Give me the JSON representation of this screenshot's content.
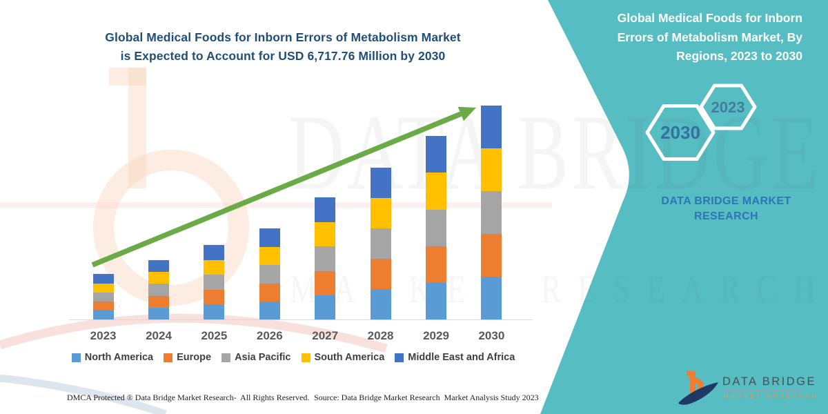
{
  "title": {
    "line1": "Global Medical Foods for Inborn Errors of Metabolism Market",
    "line2": "is Expected to Account for USD 6,717.76 Million by 2030"
  },
  "side_panel": {
    "title_lines": [
      "Global Medical Foods for Inborn",
      "Errors of Metabolism Market, By",
      "Regions, 2023 to 2030"
    ],
    "hexagons": [
      {
        "label": "2030"
      },
      {
        "label": "2023"
      }
    ],
    "brand_lines": [
      "DATA BRIDGE MARKET",
      "RESEARCH"
    ]
  },
  "chart_data": {
    "type": "bar",
    "stacked": true,
    "unit": "USD Million",
    "grid": false,
    "value_axis_visible": false,
    "legend_position": "bottom",
    "title": "Global Medical Foods for Inborn Errors of Metabolism Market is Expected to Account for USD 6,717.76 Million by 2030",
    "categories": [
      "2023",
      "2024",
      "2025",
      "2026",
      "2027",
      "2028",
      "2029",
      "2030"
    ],
    "series": [
      {
        "name": "North America",
        "color": "#5B9BD5",
        "values": [
          286,
          376,
          470,
          572,
          768,
          956,
          1154,
          1343.55
        ]
      },
      {
        "name": "Europe",
        "color": "#ED7D31",
        "values": [
          286,
          376,
          470,
          572,
          768,
          956,
          1154,
          1343.55
        ]
      },
      {
        "name": "Asia Pacific",
        "color": "#A5A5A5",
        "values": [
          286,
          376,
          470,
          572,
          768,
          956,
          1154,
          1343.55
        ]
      },
      {
        "name": "South America",
        "color": "#FFC000",
        "values": [
          286,
          376,
          470,
          572,
          768,
          956,
          1154,
          1343.55
        ]
      },
      {
        "name": "Middle East and Africa",
        "color": "#4472C4",
        "values": [
          286,
          376,
          470,
          572,
          768,
          956,
          1154,
          1343.55
        ]
      }
    ],
    "totals_estimated": [
      1430,
      1880,
      2350,
      2860,
      3840,
      4780,
      5770,
      6717.76
    ],
    "highlight_value": "USD 6,717.76 Million by 2030",
    "ylim": [
      0,
      6717.76
    ],
    "annotation": "green upward growth trend arrow"
  },
  "footer": {
    "left": "DMCA Protected ® Data Bridge Market Research-  All Rights Reserved.",
    "right": "Source: Data Bridge Market Research  Market Analysis Study 2023"
  },
  "logo": {
    "title": "DATA BRIDGE",
    "subtitle": "MARKET RESEARCH"
  },
  "watermark": {
    "big": "DATA BRIDGE",
    "sub": "MARKET RESEARCH"
  },
  "colors": {
    "panel_teal": "#56bec2",
    "title_blue": "#1f4e79",
    "arrow_green": "#6aab47",
    "brand_blue": "#2e75b6",
    "axis_line": "#d9d9d9",
    "axis_label": "#595959",
    "legend_text": "#3f3f3f",
    "footer_text": "#1c1c1c",
    "logo_title": "#4b4f54",
    "logo_subtitle": "#dc9d67",
    "hex2030_text": "#33719f",
    "hex2023_text": "#447c9c"
  }
}
